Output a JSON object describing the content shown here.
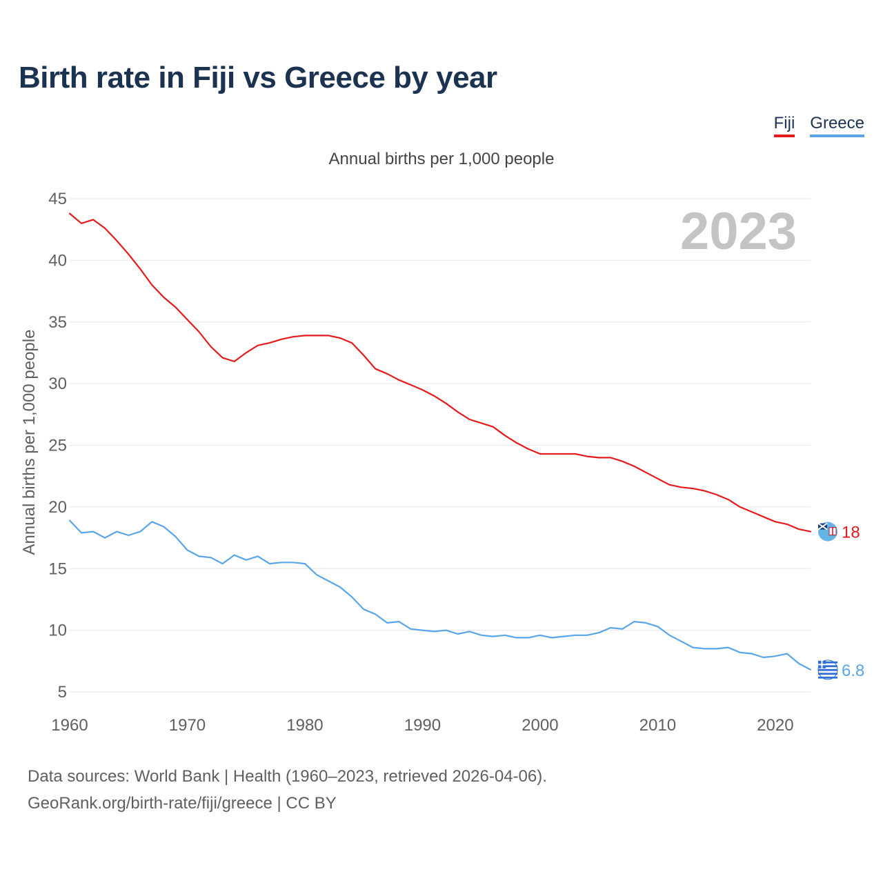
{
  "title": "Birth rate in Fiji vs Greece by year",
  "subtitle": "Annual births per 1,000 people",
  "legend": [
    {
      "label": "Fiji",
      "color": "#e41a1c"
    },
    {
      "label": "Greece",
      "color": "#5aa5e8"
    }
  ],
  "year_watermark": "2023",
  "footer": {
    "line1": "Data sources: World Bank | Health (1960–2023, retrieved 2026-04-06).",
    "line2": "GeoRank.org/birth-rate/fiji/greece | CC BY"
  },
  "chart_data": {
    "type": "line",
    "title": "Birth rate in Fiji vs Greece by year",
    "ylabel": "Annual births per 1,000 people",
    "xlabel": "",
    "xlim": [
      1960,
      2023
    ],
    "ylim": [
      5,
      45
    ],
    "x_ticks": [
      1960,
      1970,
      1980,
      1990,
      2000,
      2010,
      2020
    ],
    "y_ticks": [
      5,
      10,
      15,
      20,
      25,
      30,
      35,
      40,
      45
    ],
    "grid": true,
    "legend_position": "top-right",
    "x": [
      1960,
      1961,
      1962,
      1963,
      1964,
      1965,
      1966,
      1967,
      1968,
      1969,
      1970,
      1971,
      1972,
      1973,
      1974,
      1975,
      1976,
      1977,
      1978,
      1979,
      1980,
      1981,
      1982,
      1983,
      1984,
      1985,
      1986,
      1987,
      1988,
      1989,
      1990,
      1991,
      1992,
      1993,
      1994,
      1995,
      1996,
      1997,
      1998,
      1999,
      2000,
      2001,
      2002,
      2003,
      2004,
      2005,
      2006,
      2007,
      2008,
      2009,
      2010,
      2011,
      2012,
      2013,
      2014,
      2015,
      2016,
      2017,
      2018,
      2019,
      2020,
      2021,
      2022,
      2023
    ],
    "series": [
      {
        "name": "Fiji",
        "color": "#e41a1c",
        "end_label": "18",
        "values": [
          43.8,
          43.0,
          43.3,
          42.6,
          41.6,
          40.5,
          39.3,
          38.0,
          37.0,
          36.2,
          35.2,
          34.2,
          33.0,
          32.1,
          31.8,
          32.5,
          33.1,
          33.3,
          33.6,
          33.8,
          33.9,
          33.9,
          33.9,
          33.7,
          33.3,
          32.3,
          31.2,
          30.8,
          30.3,
          29.9,
          29.5,
          29.0,
          28.4,
          27.7,
          27.1,
          26.8,
          26.5,
          25.8,
          25.2,
          24.7,
          24.3,
          24.3,
          24.3,
          24.3,
          24.1,
          24.0,
          24.0,
          23.7,
          23.3,
          22.8,
          22.3,
          21.8,
          21.6,
          21.5,
          21.3,
          21.0,
          20.6,
          20.0,
          19.6,
          19.2,
          18.8,
          18.6,
          18.2,
          18.0
        ]
      },
      {
        "name": "Greece",
        "color": "#5aa5e8",
        "end_label": "6.8",
        "values": [
          18.9,
          17.9,
          18.0,
          17.5,
          18.0,
          17.7,
          18.0,
          18.8,
          18.4,
          17.6,
          16.5,
          16.0,
          15.9,
          15.4,
          16.1,
          15.7,
          16.0,
          15.4,
          15.5,
          15.5,
          15.4,
          14.5,
          14.0,
          13.5,
          12.7,
          11.7,
          11.3,
          10.6,
          10.7,
          10.1,
          10.0,
          9.9,
          10.0,
          9.7,
          9.9,
          9.6,
          9.5,
          9.6,
          9.4,
          9.4,
          9.6,
          9.4,
          9.5,
          9.6,
          9.6,
          9.8,
          10.2,
          10.1,
          10.7,
          10.6,
          10.3,
          9.6,
          9.1,
          8.6,
          8.5,
          8.5,
          8.6,
          8.2,
          8.1,
          7.8,
          7.9,
          8.1,
          7.3,
          6.8
        ]
      }
    ]
  }
}
